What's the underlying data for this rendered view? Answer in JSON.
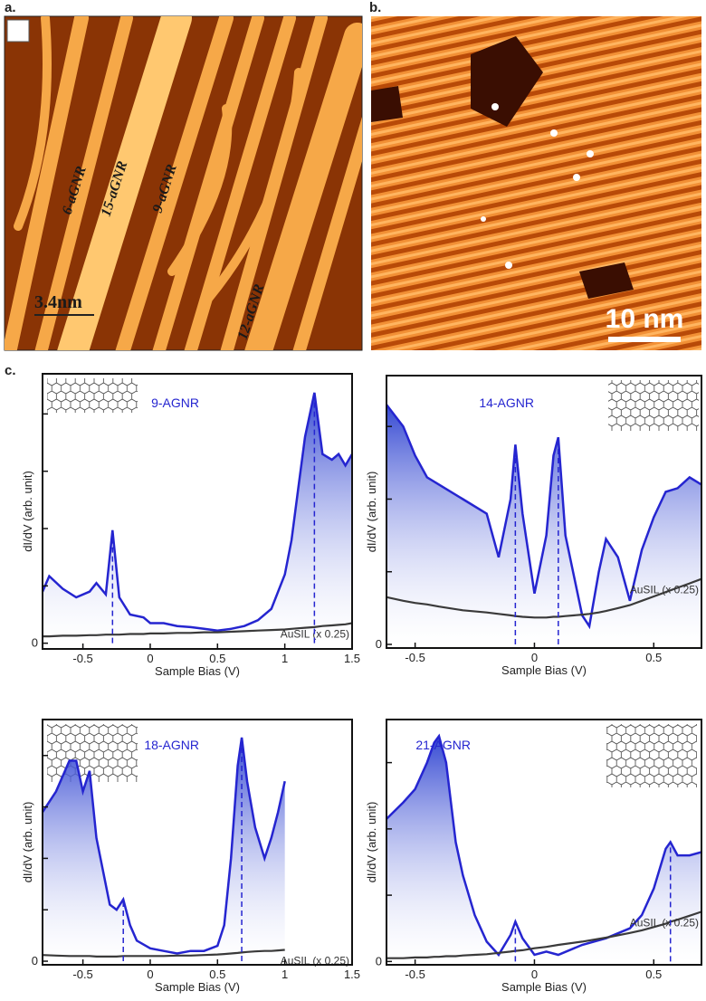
{
  "panel_labels": [
    "a.",
    "b.",
    "c."
  ],
  "image_a": {
    "ribbon_labels": [
      "6-aGNR",
      "15-aGNR",
      "9-aGNR",
      "12-aGNR"
    ],
    "scale_bar": "3.4nm"
  },
  "image_b": {
    "scale_bar": "10 nm"
  },
  "chart_data": [
    {
      "type": "line",
      "title": "9-AGNR",
      "x_label": "Sample Bias (V)",
      "y_label": "dI/dV (arb. unit)",
      "xlim": [
        -0.8,
        1.5
      ],
      "xticks": [
        -0.5,
        0,
        0.5,
        1,
        1.5
      ],
      "ylim": [
        -0.1,
        4.7
      ],
      "yticks": [
        0
      ],
      "minor_yticks": [
        1,
        2,
        3,
        4
      ],
      "x": [
        -0.8,
        -0.75,
        -0.65,
        -0.55,
        -0.45,
        -0.4,
        -0.33,
        -0.28,
        -0.23,
        -0.15,
        -0.05,
        0,
        0.1,
        0.2,
        0.3,
        0.4,
        0.5,
        0.6,
        0.7,
        0.8,
        0.9,
        1.0,
        1.05,
        1.1,
        1.15,
        1.22,
        1.28,
        1.35,
        1.4,
        1.45,
        1.5
      ],
      "series": [
        {
          "color": "#2525d0",
          "values": [
            0.9,
            1.17,
            0.95,
            0.8,
            0.9,
            1.05,
            0.85,
            1.97,
            0.8,
            0.5,
            0.45,
            0.35,
            0.35,
            0.3,
            0.28,
            0.25,
            0.22,
            0.25,
            0.3,
            0.4,
            0.6,
            1.2,
            1.8,
            2.7,
            3.6,
            4.37,
            3.3,
            3.2,
            3.3,
            3.1,
            3.3
          ]
        },
        {
          "name": "AuSIL (x 0.25)",
          "color": "#3a3a3a",
          "values": [
            0.12,
            0.12,
            0.13,
            0.13,
            0.14,
            0.14,
            0.15,
            0.15,
            0.15,
            0.16,
            0.16,
            0.17,
            0.17,
            0.18,
            0.18,
            0.19,
            0.19,
            0.2,
            0.21,
            0.22,
            0.23,
            0.24,
            0.25,
            0.26,
            0.27,
            0.28,
            0.3,
            0.31,
            0.32,
            0.33,
            0.35
          ]
        }
      ],
      "markers": [
        -0.28,
        1.22
      ]
    },
    {
      "type": "line",
      "title": "14-AGNR",
      "x_label": "Sample Bias (V)",
      "y_label": "dI/dV (arb. unit)",
      "xlim": [
        -0.62,
        0.7
      ],
      "xticks": [
        -0.5,
        0,
        0.5
      ],
      "ylim": [
        -0.05,
        3.7
      ],
      "yticks": [
        0
      ],
      "minor_yticks": [
        1,
        2,
        3
      ],
      "x": [
        -0.62,
        -0.55,
        -0.5,
        -0.45,
        -0.4,
        -0.3,
        -0.2,
        -0.15,
        -0.1,
        -0.08,
        -0.05,
        0,
        0.05,
        0.08,
        0.1,
        0.13,
        0.2,
        0.23,
        0.27,
        0.3,
        0.35,
        0.4,
        0.45,
        0.5,
        0.55,
        0.6,
        0.65,
        0.7
      ],
      "series": [
        {
          "color": "#2525d0",
          "values": [
            3.3,
            3.0,
            2.6,
            2.3,
            2.2,
            2.0,
            1.8,
            1.2,
            2.0,
            2.75,
            1.8,
            0.7,
            1.5,
            2.6,
            2.85,
            1.5,
            0.4,
            0.25,
            1.0,
            1.45,
            1.2,
            0.6,
            1.3,
            1.75,
            2.1,
            2.15,
            2.3,
            2.2
          ]
        },
        {
          "name": "AuSIL (x 0.25)",
          "color": "#3a3a3a",
          "values": [
            0.65,
            0.6,
            0.57,
            0.55,
            0.52,
            0.47,
            0.44,
            0.42,
            0.4,
            0.39,
            0.38,
            0.37,
            0.37,
            0.38,
            0.38,
            0.39,
            0.41,
            0.42,
            0.44,
            0.46,
            0.5,
            0.54,
            0.6,
            0.66,
            0.72,
            0.78,
            0.84,
            0.9
          ]
        }
      ],
      "markers": [
        -0.08,
        0.1
      ]
    },
    {
      "type": "line",
      "title": "18-AGNR",
      "x_label": "Sample Bias (V)",
      "y_label": "dI/dV (arb. unit)",
      "xlim": [
        -0.8,
        1.5
      ],
      "xticks": [
        -0.5,
        0,
        0.5,
        1,
        1.5
      ],
      "ylim": [
        -0.07,
        4.7
      ],
      "yticks": [
        0
      ],
      "minor_yticks": [
        1,
        2,
        3,
        4
      ],
      "x": [
        -0.8,
        -0.7,
        -0.6,
        -0.55,
        -0.5,
        -0.45,
        -0.4,
        -0.3,
        -0.25,
        -0.2,
        -0.15,
        -0.1,
        0,
        0.1,
        0.2,
        0.3,
        0.4,
        0.5,
        0.55,
        0.6,
        0.65,
        0.68,
        0.72,
        0.78,
        0.85,
        0.9,
        0.95,
        1.0
      ],
      "series": [
        {
          "color": "#2525d0",
          "values": [
            2.9,
            3.3,
            3.9,
            3.9,
            3.3,
            3.7,
            2.4,
            1.1,
            1.0,
            1.2,
            0.7,
            0.4,
            0.25,
            0.2,
            0.15,
            0.2,
            0.2,
            0.3,
            0.7,
            2.0,
            3.8,
            4.35,
            3.5,
            2.6,
            2.0,
            2.4,
            2.9,
            3.5
          ]
        },
        {
          "name": "AuSIL (x 0.25)",
          "color": "#3a3a3a",
          "values": [
            0.12,
            0.11,
            0.1,
            0.1,
            0.1,
            0.1,
            0.09,
            0.09,
            0.09,
            0.1,
            0.1,
            0.1,
            0.1,
            0.1,
            0.11,
            0.11,
            0.12,
            0.13,
            0.14,
            0.15,
            0.16,
            0.17,
            0.18,
            0.19,
            0.2,
            0.2,
            0.21,
            0.22
          ]
        }
      ],
      "markers": [
        -0.2,
        0.68
      ]
    },
    {
      "type": "line",
      "title": "21-AGNR",
      "x_label": "Sample Bias (V)",
      "y_label": "dI/dV (arb. unit)",
      "xlim": [
        -0.62,
        0.7
      ],
      "xticks": [
        -0.5,
        0,
        0.5
      ],
      "ylim": [
        -0.05,
        3.65
      ],
      "yticks": [
        0
      ],
      "minor_yticks": [
        1,
        2,
        3
      ],
      "x": [
        -0.62,
        -0.55,
        -0.5,
        -0.45,
        -0.42,
        -0.4,
        -0.37,
        -0.33,
        -0.3,
        -0.25,
        -0.2,
        -0.15,
        -0.1,
        -0.08,
        -0.05,
        0,
        0.05,
        0.1,
        0.2,
        0.3,
        0.4,
        0.45,
        0.5,
        0.55,
        0.57,
        0.6,
        0.65,
        0.7
      ],
      "series": [
        {
          "color": "#2525d0",
          "values": [
            2.15,
            2.4,
            2.6,
            3.0,
            3.3,
            3.4,
            3.0,
            1.8,
            1.3,
            0.7,
            0.3,
            0.1,
            0.4,
            0.6,
            0.35,
            0.1,
            0.15,
            0.1,
            0.25,
            0.35,
            0.5,
            0.7,
            1.1,
            1.7,
            1.8,
            1.6,
            1.6,
            1.65
          ]
        },
        {
          "name": "AuSIL (x 0.25)",
          "color": "#3a3a3a",
          "values": [
            0.05,
            0.05,
            0.06,
            0.06,
            0.07,
            0.07,
            0.08,
            0.08,
            0.09,
            0.1,
            0.11,
            0.13,
            0.15,
            0.16,
            0.17,
            0.2,
            0.22,
            0.25,
            0.3,
            0.36,
            0.43,
            0.47,
            0.52,
            0.57,
            0.6,
            0.63,
            0.69,
            0.75
          ]
        }
      ],
      "markers": [
        -0.08,
        0.57
      ]
    }
  ]
}
